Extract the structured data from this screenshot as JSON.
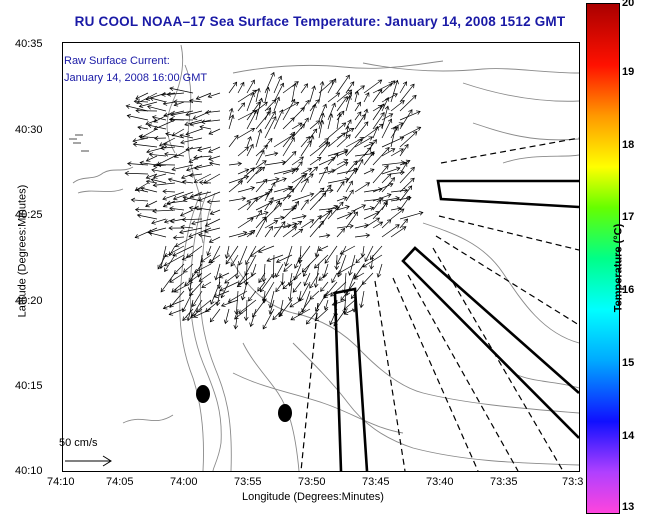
{
  "title": "RU COOL  NOAA–17  Sea Surface Temperature:  January 14, 2008 1512 GMT",
  "annotation": {
    "line1": "Raw Surface Current:",
    "line2": "January 14, 2008 16:00 GMT"
  },
  "axes": {
    "ylabel": "Latitude (Degrees:Minutes)",
    "xlabel": "Longitude (Degrees:Minutes)",
    "yticks": [
      "40:35",
      "40:30",
      "40:25",
      "40:20",
      "40:15",
      "40:10"
    ],
    "xticks": [
      "74:10",
      "74:05",
      "74:00",
      "73:55",
      "73:50",
      "73:45",
      "73:40",
      "73:35",
      "73:3"
    ]
  },
  "colorbar": {
    "label": "Temperature (°C)",
    "ticks": [
      "20",
      "19",
      "18",
      "17",
      "16",
      "15",
      "14",
      "13"
    ]
  },
  "scale_vector": {
    "label": "50 cm/s"
  },
  "colors": {
    "title": "#1a1aa6",
    "annotation": "#1a1aa6",
    "coast": "#808080",
    "vectors": "#000000"
  }
}
